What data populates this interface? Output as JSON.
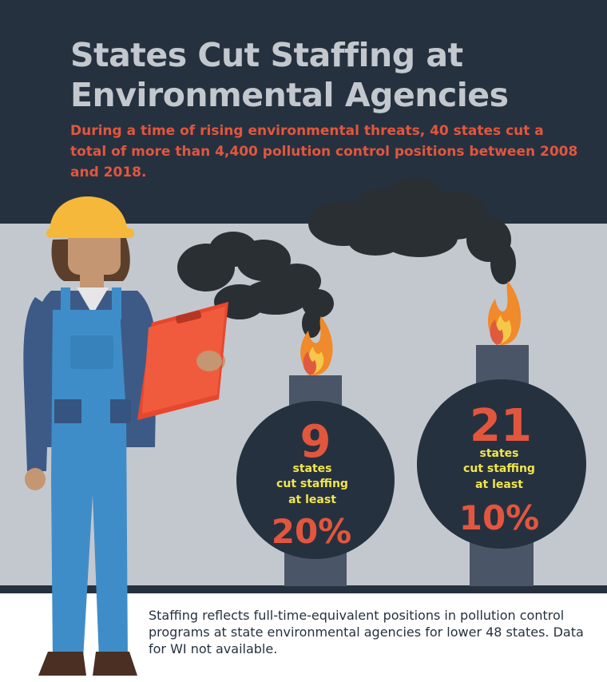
{
  "title": "States Cut Staffing at Environmental Agencies",
  "subtitle": "During a time of rising environmental threats, 40 states cut a total of more than 4,400 pollution control positions between 2008 and 2018.",
  "stat_left": {
    "number": "9",
    "line1": "states",
    "line2": "cut staffing",
    "line3": "at least",
    "percent": "20%"
  },
  "stat_right": {
    "number": "21",
    "line1": "states",
    "line2": "cut staffing",
    "line3": "at least",
    "percent": "10%"
  },
  "footnote": "Staffing reflects full-time-equivalent positions in pollution control programs at state environmental agencies for lower 48 states. Data for WI not available.",
  "colors": {
    "navy": "#26313f",
    "gray_band": "#c3c8cf",
    "accent_red": "#e2563e",
    "accent_yellow": "#f2e64a",
    "hardhat_yellow": "#f5b83a"
  }
}
